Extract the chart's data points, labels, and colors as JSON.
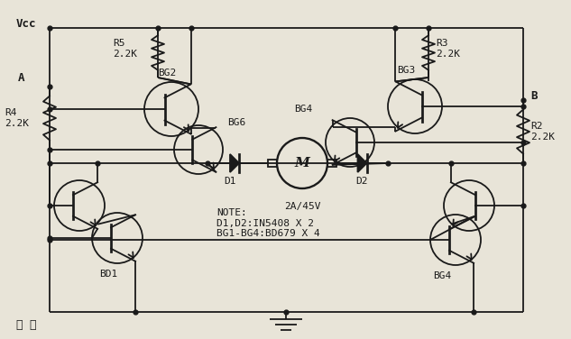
{
  "background_color": "#e8e4d8",
  "line_color": "#1a1a1a",
  "title": "图 四",
  "vcc_label": "Vcc",
  "a_label": "A",
  "b_label": "B",
  "note_text": "NOTE:\nD1,D2:IN5408 X 2\nBG1-BG4:BD679 X 4",
  "motor_label": "2A/45V"
}
